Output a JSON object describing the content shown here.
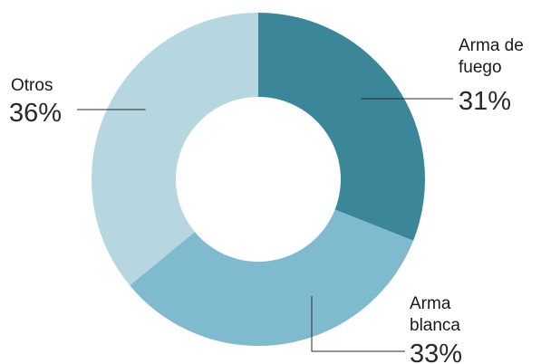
{
  "chart_data": {
    "type": "pie",
    "style": "donut",
    "title": "",
    "categories": [
      "Arma de fuego",
      "Arma blanca",
      "Otros"
    ],
    "values": [
      31,
      33,
      36
    ],
    "unit": "%",
    "colors": [
      "#3b8699",
      "#7fbacf",
      "#b6d6e0"
    ],
    "labels": [
      {
        "lines": [
          "Arma de",
          "fuego"
        ],
        "value": "31%"
      },
      {
        "lines": [
          "Arma",
          "blanca"
        ],
        "value": "33%"
      },
      {
        "lines": [
          "Otros"
        ],
        "value": "36%"
      }
    ]
  }
}
